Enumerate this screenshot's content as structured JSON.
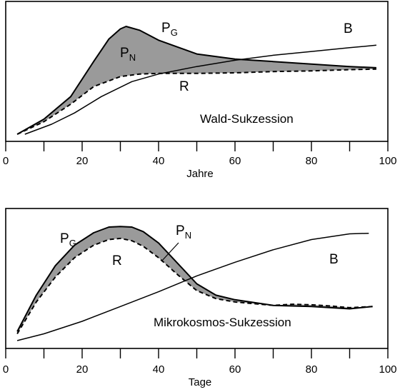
{
  "chart_data": [
    {
      "type": "line",
      "title": "Wald-Sukzession",
      "xlabel": "Jahre",
      "ylabel": "",
      "xlim": [
        0,
        100
      ],
      "xticks": [
        0,
        20,
        40,
        60,
        80,
        100
      ],
      "grid": false,
      "labels": {
        "PG": {
          "main": "P",
          "sub": "G"
        },
        "PN": {
          "main": "P",
          "sub": "N"
        },
        "R": {
          "main": "R",
          "sub": ""
        },
        "B": {
          "main": "B",
          "sub": ""
        }
      },
      "series": [
        {
          "name": "P_G",
          "style": "solid",
          "x": [
            3,
            10,
            17,
            23,
            27,
            30,
            31.5,
            35,
            40,
            50,
            60,
            70,
            80,
            90,
            97
          ],
          "y": [
            0,
            12,
            30,
            58,
            76,
            84,
            86,
            83,
            75,
            64,
            60,
            58,
            56,
            54,
            53
          ]
        },
        {
          "name": "R",
          "style": "dashed",
          "x": [
            3,
            10,
            17,
            23,
            30,
            35,
            40,
            50,
            60,
            70,
            80,
            90,
            97
          ],
          "y": [
            0,
            10,
            24,
            38,
            46,
            48,
            48.5,
            48.5,
            49,
            50,
            50.5,
            51.5,
            52
          ]
        },
        {
          "name": "B",
          "style": "solid",
          "x": [
            5,
            12,
            18,
            25,
            33,
            40,
            50,
            60,
            70,
            80,
            90,
            97
          ],
          "y": [
            0,
            8,
            17,
            30,
            42,
            48,
            54,
            59,
            63,
            66,
            69,
            71
          ]
        }
      ],
      "fill_between": [
        "P_G",
        "R"
      ]
    },
    {
      "type": "line",
      "title": "Mikrokosmos-Sukzession",
      "xlabel": "Tage",
      "ylabel": "",
      "xlim": [
        0,
        100
      ],
      "xticks": [
        0,
        20,
        40,
        60,
        80,
        100
      ],
      "grid": false,
      "labels": {
        "PG": {
          "main": "P",
          "sub": "G"
        },
        "PN": {
          "main": "P",
          "sub": "N"
        },
        "R": {
          "main": "R",
          "sub": ""
        },
        "B": {
          "main": "B",
          "sub": ""
        }
      },
      "series": [
        {
          "name": "P_G",
          "style": "solid",
          "x": [
            3,
            8,
            13,
            18,
            23,
            27,
            30,
            33,
            36,
            40,
            45,
            50,
            55,
            60,
            70,
            80,
            90,
            96
          ],
          "y": [
            8,
            40,
            66,
            84,
            95,
            100,
            100.5,
            100,
            96,
            86,
            68,
            50,
            40,
            36,
            31,
            30,
            28,
            30
          ]
        },
        {
          "name": "R",
          "style": "dashed",
          "x": [
            3,
            8,
            13,
            18,
            23,
            27,
            30,
            33,
            36,
            40,
            45,
            50,
            55,
            60,
            70,
            75,
            80,
            85,
            90,
            96
          ],
          "y": [
            6,
            34,
            56,
            73,
            84,
            89,
            90,
            88,
            83,
            73,
            58,
            44,
            37,
            34,
            31,
            32,
            31.5,
            30.5,
            29,
            30
          ]
        },
        {
          "name": "B",
          "style": "solid",
          "x": [
            3,
            10,
            20,
            30,
            40,
            50,
            60,
            70,
            80,
            90,
            95
          ],
          "y": [
            0,
            6,
            17,
            30,
            43,
            57,
            69,
            80,
            89,
            94,
            94.5
          ]
        }
      ],
      "fill_between": [
        "P_G",
        "R"
      ]
    }
  ]
}
